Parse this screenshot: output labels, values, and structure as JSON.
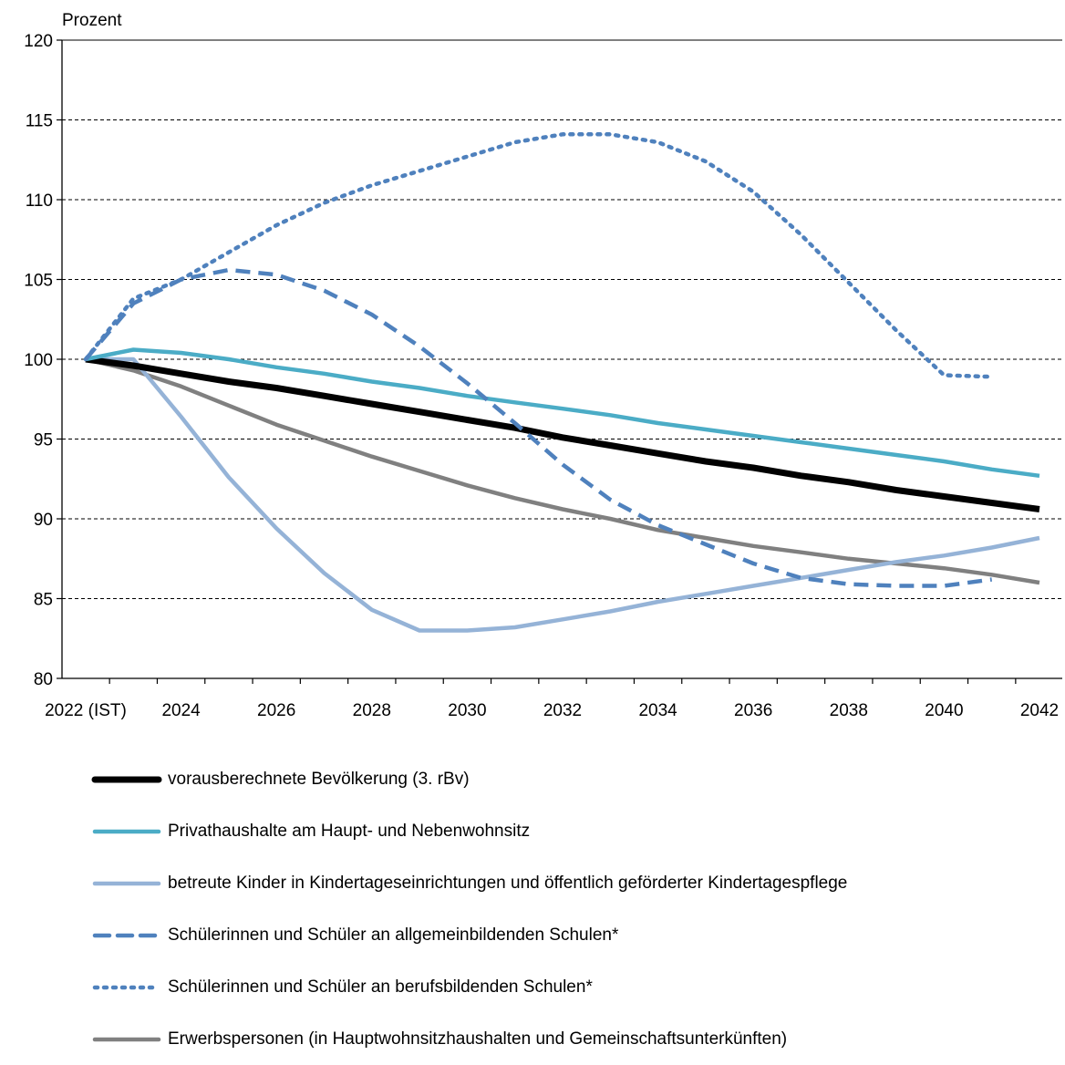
{
  "chart_data": {
    "type": "line",
    "ylabel": "Prozent",
    "ylim": [
      80,
      120
    ],
    "yticks": [
      80,
      85,
      90,
      95,
      100,
      105,
      110,
      115,
      120
    ],
    "xlim": [
      2022,
      2042
    ],
    "xticks": [
      "2022 (IST)",
      "2024",
      "2026",
      "2028",
      "2030",
      "2032",
      "2034",
      "2036",
      "2038",
      "2040",
      "2042"
    ],
    "grid": "horizontal-dashed",
    "legend_position": "bottom",
    "series": [
      {
        "name": "vorausberechnete Bevölkerung (3. rBv)",
        "color": "#000000",
        "style": "solid",
        "width": 7,
        "x": [
          2022,
          2023,
          2024,
          2025,
          2026,
          2027,
          2028,
          2029,
          2030,
          2031,
          2032,
          2033,
          2034,
          2035,
          2036,
          2037,
          2038,
          2039,
          2040,
          2041,
          2042
        ],
        "values": [
          100,
          99.6,
          99.1,
          98.6,
          98.2,
          97.7,
          97.2,
          96.7,
          96.2,
          95.7,
          95.1,
          94.6,
          94.1,
          93.6,
          93.2,
          92.7,
          92.3,
          91.8,
          91.4,
          91.0,
          90.6
        ]
      },
      {
        "name": "Privathaushalte am Haupt- und Nebenwohnsitz",
        "color": "#4bacc6",
        "style": "solid",
        "width": 4.5,
        "x": [
          2022,
          2023,
          2024,
          2025,
          2026,
          2027,
          2028,
          2029,
          2030,
          2031,
          2032,
          2033,
          2034,
          2035,
          2036,
          2037,
          2038,
          2039,
          2040,
          2041,
          2042
        ],
        "values": [
          100,
          100.6,
          100.4,
          100.0,
          99.5,
          99.1,
          98.6,
          98.2,
          97.7,
          97.3,
          96.9,
          96.5,
          96.0,
          95.6,
          95.2,
          94.8,
          94.4,
          94.0,
          93.6,
          93.1,
          92.7
        ]
      },
      {
        "name": "betreute Kinder in Kindertageseinrichtungen und öffentlich geförderter Kindertagespflege",
        "color": "#95b3d7",
        "style": "solid",
        "width": 4.5,
        "x": [
          2022,
          2023,
          2024,
          2025,
          2026,
          2027,
          2028,
          2029,
          2030,
          2031,
          2032,
          2033,
          2034,
          2035,
          2036,
          2037,
          2038,
          2039,
          2040,
          2041,
          2042
        ],
        "values": [
          100,
          100.0,
          96.4,
          92.6,
          89.4,
          86.6,
          84.3,
          83.0,
          83.0,
          83.2,
          83.7,
          84.2,
          84.8,
          85.3,
          85.8,
          86.3,
          86.8,
          87.3,
          87.7,
          88.2,
          88.8
        ]
      },
      {
        "name": "Schülerinnen und Schüler an allgemeinbildenden Schulen*",
        "color": "#4f81bd",
        "style": "dashed",
        "width": 4.5,
        "x": [
          2022,
          2023,
          2024,
          2025,
          2026,
          2027,
          2028,
          2029,
          2030,
          2031,
          2032,
          2033,
          2034,
          2035,
          2036,
          2037,
          2038,
          2039,
          2040,
          2041
        ],
        "values": [
          100,
          103.5,
          105.0,
          105.6,
          105.3,
          104.3,
          102.8,
          100.8,
          98.5,
          96.0,
          93.4,
          91.2,
          89.6,
          88.4,
          87.2,
          86.3,
          85.9,
          85.8,
          85.8,
          86.2
        ]
      },
      {
        "name": "Schülerinnen und Schüler an berufsbildenden Schulen*",
        "color": "#4f81bd",
        "style": "dotted",
        "width": 4.5,
        "x": [
          2022,
          2023,
          2024,
          2025,
          2026,
          2027,
          2028,
          2029,
          2030,
          2031,
          2032,
          2033,
          2034,
          2035,
          2036,
          2037,
          2038,
          2039,
          2040,
          2041
        ],
        "values": [
          100,
          103.8,
          105.0,
          106.7,
          108.4,
          109.8,
          110.9,
          111.8,
          112.7,
          113.6,
          114.1,
          114.1,
          113.6,
          112.4,
          110.5,
          107.8,
          104.8,
          101.8,
          99.0,
          98.9
        ]
      },
      {
        "name": "Erwerbspersonen (in Hauptwohnsitzhaushalten und Gemeinschaftsunterkünften)",
        "color": "#808080",
        "style": "solid",
        "width": 4.5,
        "x": [
          2022,
          2023,
          2024,
          2025,
          2026,
          2027,
          2028,
          2029,
          2030,
          2031,
          2032,
          2033,
          2034,
          2035,
          2036,
          2037,
          2038,
          2039,
          2040,
          2041,
          2042
        ],
        "values": [
          100,
          99.3,
          98.3,
          97.1,
          95.9,
          94.9,
          93.9,
          93.0,
          92.1,
          91.3,
          90.6,
          90.0,
          89.3,
          88.8,
          88.3,
          87.9,
          87.5,
          87.2,
          86.9,
          86.5,
          86.0
        ]
      }
    ]
  }
}
